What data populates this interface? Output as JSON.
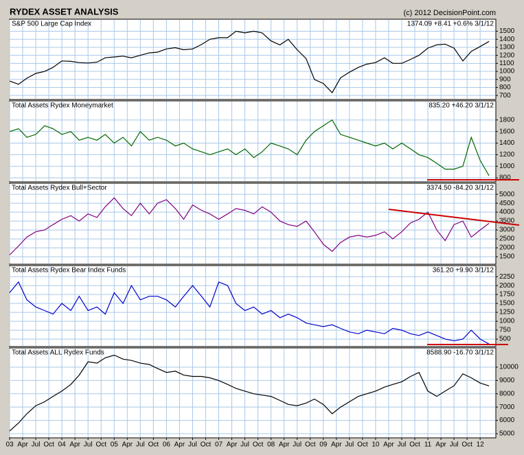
{
  "chart_data": [
    {
      "type": "line",
      "title": "RYDEX ASSET ANALYSIS",
      "credit": "(c) 2012 DecisionPoint.com",
      "label": "S&P 500 Large Cap Index",
      "readout": "1374.09 +8.41 +0.6% 3/1/12",
      "color": "#000000",
      "x": [
        2003,
        2003.17,
        2003.33,
        2003.5,
        2003.67,
        2003.83,
        2004,
        2004.17,
        2004.33,
        2004.5,
        2004.67,
        2004.83,
        2005,
        2005.17,
        2005.33,
        2005.5,
        2005.67,
        2005.83,
        2006,
        2006.17,
        2006.33,
        2006.5,
        2006.67,
        2006.83,
        2007,
        2007.17,
        2007.33,
        2007.5,
        2007.67,
        2007.83,
        2008,
        2008.17,
        2008.33,
        2008.5,
        2008.67,
        2008.83,
        2009,
        2009.17,
        2009.33,
        2009.5,
        2009.67,
        2009.83,
        2010,
        2010.17,
        2010.33,
        2010.5,
        2010.67,
        2010.83,
        2011,
        2011.17,
        2011.33,
        2011.5,
        2011.67,
        2011.83,
        2012,
        2012.17
      ],
      "values": [
        880,
        840,
        915,
        975,
        1000,
        1050,
        1130,
        1125,
        1110,
        1105,
        1115,
        1170,
        1180,
        1190,
        1170,
        1200,
        1230,
        1240,
        1280,
        1295,
        1270,
        1280,
        1335,
        1400,
        1420,
        1420,
        1500,
        1480,
        1500,
        1480,
        1380,
        1330,
        1400,
        1270,
        1160,
        900,
        850,
        735,
        920,
        990,
        1050,
        1090,
        1110,
        1170,
        1100,
        1100,
        1150,
        1200,
        1290,
        1330,
        1340,
        1290,
        1130,
        1250,
        1310,
        1374
      ],
      "xlim": [
        2003,
        2012.3
      ],
      "ylim": [
        650,
        1650
      ],
      "yticks": [
        700,
        800,
        900,
        1000,
        1100,
        1200,
        1300,
        1400,
        1500
      ],
      "grid": true
    },
    {
      "type": "line",
      "label": "Total Assets Rydex Moneymarket",
      "readout": "835.20 +46.20 3/1/12",
      "color": "#006600",
      "x": [
        2003,
        2003.17,
        2003.33,
        2003.5,
        2003.67,
        2003.83,
        2004,
        2004.17,
        2004.33,
        2004.5,
        2004.67,
        2004.83,
        2005,
        2005.17,
        2005.33,
        2005.5,
        2005.67,
        2005.83,
        2006,
        2006.17,
        2006.33,
        2006.5,
        2006.67,
        2006.83,
        2007,
        2007.17,
        2007.33,
        2007.5,
        2007.67,
        2007.83,
        2008,
        2008.17,
        2008.33,
        2008.5,
        2008.67,
        2008.83,
        2009,
        2009.17,
        2009.33,
        2009.5,
        2009.67,
        2009.83,
        2010,
        2010.17,
        2010.33,
        2010.5,
        2010.67,
        2010.83,
        2011,
        2011.17,
        2011.33,
        2011.5,
        2011.67,
        2011.83,
        2012,
        2012.17
      ],
      "values": [
        1600,
        1650,
        1500,
        1550,
        1700,
        1650,
        1550,
        1600,
        1450,
        1500,
        1450,
        1550,
        1400,
        1500,
        1350,
        1600,
        1450,
        1500,
        1450,
        1350,
        1400,
        1300,
        1250,
        1200,
        1250,
        1300,
        1200,
        1300,
        1150,
        1250,
        1400,
        1350,
        1300,
        1200,
        1450,
        1600,
        1700,
        1800,
        1550,
        1500,
        1450,
        1400,
        1350,
        1400,
        1300,
        1400,
        1300,
        1200,
        1150,
        1050,
        950,
        950,
        1000,
        1500,
        1100,
        835.2
      ],
      "xlim": [
        2003,
        2012.3
      ],
      "ylim": [
        730,
        2130
      ],
      "yticks": [
        800,
        1000,
        1200,
        1400,
        1600,
        1800
      ],
      "grid": true
    },
    {
      "type": "line",
      "label": "Total Assets Rydex Bull+Sector",
      "readout": "3374.50 -84.20 3/1/12",
      "color": "#800080",
      "x": [
        2003,
        2003.17,
        2003.33,
        2003.5,
        2003.67,
        2003.83,
        2004,
        2004.17,
        2004.33,
        2004.5,
        2004.67,
        2004.83,
        2005,
        2005.17,
        2005.33,
        2005.5,
        2005.67,
        2005.83,
        2006,
        2006.17,
        2006.33,
        2006.5,
        2006.67,
        2006.83,
        2007,
        2007.17,
        2007.33,
        2007.5,
        2007.67,
        2007.83,
        2008,
        2008.17,
        2008.33,
        2008.5,
        2008.67,
        2008.83,
        2009,
        2009.17,
        2009.33,
        2009.5,
        2009.67,
        2009.83,
        2010,
        2010.17,
        2010.33,
        2010.5,
        2010.67,
        2010.83,
        2011,
        2011.17,
        2011.33,
        2011.5,
        2011.67,
        2011.83,
        2012,
        2012.17
      ],
      "values": [
        1600,
        2100,
        2600,
        2900,
        3000,
        3300,
        3600,
        3800,
        3500,
        3900,
        3700,
        4300,
        4800,
        4200,
        3800,
        4500,
        3900,
        4500,
        4700,
        4200,
        3600,
        4400,
        4100,
        3900,
        3600,
        3900,
        4200,
        4100,
        3900,
        4300,
        4000,
        3500,
        3300,
        3200,
        3500,
        2900,
        2200,
        1800,
        2300,
        2600,
        2700,
        2600,
        2700,
        2900,
        2500,
        2900,
        3400,
        3600,
        4000,
        3000,
        2400,
        3300,
        3500,
        2600,
        3000,
        3374.5
      ],
      "xlim": [
        2003,
        2012.3
      ],
      "ylim": [
        1080,
        5620
      ],
      "yticks": [
        1500,
        2000,
        2500,
        3000,
        3500,
        4000,
        4500,
        5000
      ],
      "grid": true
    },
    {
      "type": "line",
      "label": "Total Assets Rydex Bear Index Funds",
      "readout": "361.20 +9.90 3/1/12",
      "color": "#0000cc",
      "x": [
        2003,
        2003.17,
        2003.33,
        2003.5,
        2003.67,
        2003.83,
        2004,
        2004.17,
        2004.33,
        2004.5,
        2004.67,
        2004.83,
        2005,
        2005.17,
        2005.33,
        2005.5,
        2005.67,
        2005.83,
        2006,
        2006.17,
        2006.33,
        2006.5,
        2006.67,
        2006.83,
        2007,
        2007.17,
        2007.33,
        2007.5,
        2007.67,
        2007.83,
        2008,
        2008.17,
        2008.33,
        2008.5,
        2008.67,
        2008.83,
        2009,
        2009.17,
        2009.33,
        2009.5,
        2009.67,
        2009.83,
        2010,
        2010.17,
        2010.33,
        2010.5,
        2010.67,
        2010.83,
        2011,
        2011.17,
        2011.33,
        2011.5,
        2011.67,
        2011.83,
        2012,
        2012.17
      ],
      "values": [
        1800,
        2100,
        1600,
        1400,
        1300,
        1200,
        1500,
        1300,
        1700,
        1300,
        1400,
        1200,
        1800,
        1500,
        2000,
        1600,
        1700,
        1700,
        1600,
        1400,
        1700,
        2000,
        1700,
        1400,
        2100,
        2000,
        1500,
        1300,
        1400,
        1200,
        1300,
        1100,
        1200,
        1100,
        950,
        900,
        850,
        900,
        800,
        700,
        650,
        750,
        700,
        650,
        800,
        750,
        650,
        600,
        700,
        600,
        500,
        450,
        500,
        750,
        500,
        361.2
      ],
      "xlim": [
        2003,
        2012.3
      ],
      "ylim": [
        290,
        2560
      ],
      "yticks": [
        500,
        750,
        1000,
        1250,
        1500,
        1750,
        2000,
        2250
      ],
      "grid": true
    },
    {
      "type": "line",
      "label": "Total Assets ALL Rydex Funds",
      "readout": "8588.90 -16.70 3/1/12",
      "color": "#000000",
      "x": [
        2003,
        2003.17,
        2003.33,
        2003.5,
        2003.67,
        2003.83,
        2004,
        2004.17,
        2004.33,
        2004.5,
        2004.67,
        2004.83,
        2005,
        2005.17,
        2005.33,
        2005.5,
        2005.67,
        2005.83,
        2006,
        2006.17,
        2006.33,
        2006.5,
        2006.67,
        2006.83,
        2007,
        2007.17,
        2007.33,
        2007.5,
        2007.67,
        2007.83,
        2008,
        2008.17,
        2008.33,
        2008.5,
        2008.67,
        2008.83,
        2009,
        2009.17,
        2009.33,
        2009.5,
        2009.67,
        2009.83,
        2010,
        2010.17,
        2010.33,
        2010.5,
        2010.67,
        2010.83,
        2011,
        2011.17,
        2011.33,
        2011.5,
        2011.67,
        2011.83,
        2012,
        2012.17
      ],
      "values": [
        5200,
        5800,
        6500,
        7100,
        7400,
        7800,
        8200,
        8700,
        9400,
        10400,
        10300,
        10700,
        10900,
        10600,
        10500,
        10300,
        10200,
        9900,
        9600,
        9700,
        9400,
        9300,
        9300,
        9200,
        9000,
        8700,
        8400,
        8200,
        8000,
        7900,
        7800,
        7500,
        7200,
        7100,
        7300,
        7600,
        7200,
        6500,
        7000,
        7400,
        7800,
        8000,
        8200,
        8500,
        8700,
        8900,
        9300,
        9600,
        8200,
        7800,
        8200,
        8600,
        9500,
        9200,
        8800,
        8588.9
      ],
      "xlim": [
        2003,
        2012.3
      ],
      "ylim": [
        4690,
        11440
      ],
      "yticks": [
        5000,
        6000,
        7000,
        8000,
        9000,
        10000
      ],
      "grid": true,
      "xticks": [
        {
          "value": 2003,
          "label": "03"
        },
        {
          "value": 2003.25,
          "label": "Apr"
        },
        {
          "value": 2003.5,
          "label": "Jul"
        },
        {
          "value": 2003.75,
          "label": "Oct"
        },
        {
          "value": 2004,
          "label": "04"
        },
        {
          "value": 2004.25,
          "label": "Apr"
        },
        {
          "value": 2004.5,
          "label": "Jul"
        },
        {
          "value": 2004.75,
          "label": "Oct"
        },
        {
          "value": 2005,
          "label": "05"
        },
        {
          "value": 2005.25,
          "label": "Apr"
        },
        {
          "value": 2005.5,
          "label": "Jul"
        },
        {
          "value": 2005.75,
          "label": "Oct"
        },
        {
          "value": 2006,
          "label": "06"
        },
        {
          "value": 2006.25,
          "label": "Apr"
        },
        {
          "value": 2006.5,
          "label": "Jul"
        },
        {
          "value": 2006.75,
          "label": "Oct"
        },
        {
          "value": 2007,
          "label": "07"
        },
        {
          "value": 2007.25,
          "label": "Apr"
        },
        {
          "value": 2007.5,
          "label": "Jul"
        },
        {
          "value": 2007.75,
          "label": "Oct"
        },
        {
          "value": 2008,
          "label": "08"
        },
        {
          "value": 2008.25,
          "label": "Apr"
        },
        {
          "value": 2008.5,
          "label": "Jul"
        },
        {
          "value": 2008.75,
          "label": "Oct"
        },
        {
          "value": 2009,
          "label": "09"
        },
        {
          "value": 2009.25,
          "label": "Apr"
        },
        {
          "value": 2009.5,
          "label": "Jul"
        },
        {
          "value": 2009.75,
          "label": "Oct"
        },
        {
          "value": 2010,
          "label": "10"
        },
        {
          "value": 2010.25,
          "label": "Apr"
        },
        {
          "value": 2010.5,
          "label": "Jul"
        },
        {
          "value": 2010.75,
          "label": "Oct"
        },
        {
          "value": 2011,
          "label": "11"
        },
        {
          "value": 2011.25,
          "label": "Apr"
        },
        {
          "value": 2011.5,
          "label": "Jul"
        },
        {
          "value": 2011.75,
          "label": "Oct"
        },
        {
          "value": 2012,
          "label": "12"
        }
      ]
    }
  ]
}
